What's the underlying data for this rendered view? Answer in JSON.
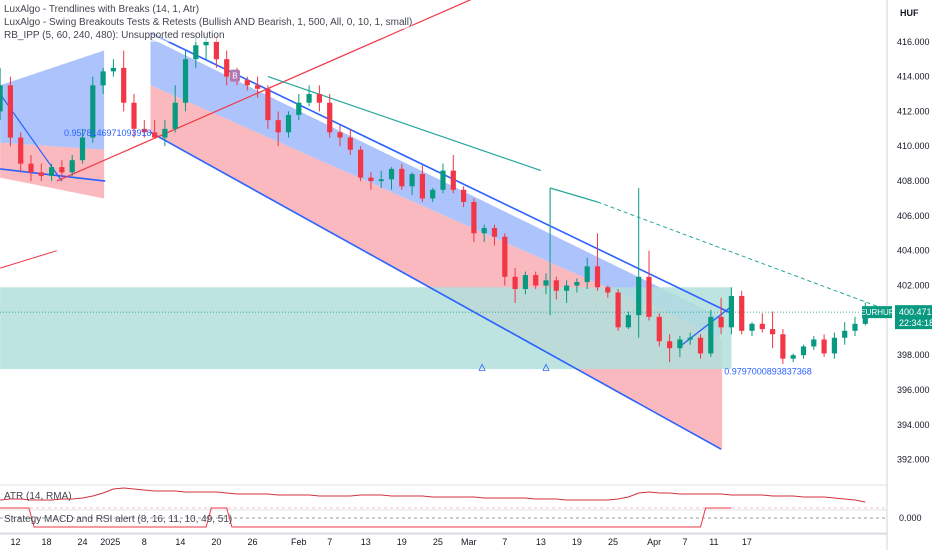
{
  "indicators": [
    "LuxAlgo - Trendlines with Breaks (14, 1, Atr)",
    "LuxAlgo - Swing Breakouts Tests & Retests (Bullish AND Bearish, 1, 500, All, 0, 10, 1, small)",
    "RB_IPP (5, 60, 240, 480): Unsupported resolution",
    "ATR (14, RMA)",
    "Strategy MACD and RSI alert (8, 16, 11, 10, 49, 51)"
  ],
  "currency": "HUF",
  "symbol": "EURHUF",
  "last_price": "400.471",
  "countdown": "22:34:18",
  "osc_value": "0.000",
  "marker_b": "B",
  "level_labels": [
    {
      "text": "0.9578146971093918",
      "t": 5.2,
      "y": 410.6
    },
    {
      "text": "0.9797000893837368",
      "t": 69.3,
      "y": 396.9
    }
  ],
  "chart_data": {
    "type": "candlestick",
    "y_axis_ticks": [
      "416.000",
      "414.000",
      "412.000",
      "410.000",
      "408.000",
      "406.000",
      "404.000",
      "402.000",
      "400.000",
      "398.000",
      "396.000",
      "394.000",
      "392.000"
    ],
    "ylim": [
      390.6,
      418.4
    ],
    "x_axis_ticks": [
      {
        "label": "12",
        "t": 0.5
      },
      {
        "label": "18",
        "t": 3.5
      },
      {
        "label": "24",
        "t": 7.0
      },
      {
        "label": "2025",
        "t": 9.7
      },
      {
        "label": "8",
        "t": 13.0
      },
      {
        "label": "14",
        "t": 16.5
      },
      {
        "label": "20",
        "t": 20.0
      },
      {
        "label": "26",
        "t": 23.5
      },
      {
        "label": "Feb",
        "t": 28.0
      },
      {
        "label": "7",
        "t": 31.0
      },
      {
        "label": "13",
        "t": 34.5
      },
      {
        "label": "19",
        "t": 38.0
      },
      {
        "label": "25",
        "t": 41.5
      },
      {
        "label": "Mar",
        "t": 44.5
      },
      {
        "label": "7",
        "t": 48.0
      },
      {
        "label": "13",
        "t": 51.5
      },
      {
        "label": "19",
        "t": 55.0
      },
      {
        "label": "25",
        "t": 58.5
      },
      {
        "label": "Apr",
        "t": 62.5
      },
      {
        "label": "7",
        "t": 65.5
      },
      {
        "label": "11",
        "t": 68.3
      },
      {
        "label": "17",
        "t": 71.5
      }
    ],
    "candles": [
      {
        "o": 412.0,
        "h": 414.5,
        "l": 411.5,
        "c": 413.5
      },
      {
        "o": 413.5,
        "h": 414.0,
        "l": 410.0,
        "c": 410.5
      },
      {
        "o": 410.5,
        "h": 410.8,
        "l": 408.5,
        "c": 409.0
      },
      {
        "o": 409.0,
        "h": 409.5,
        "l": 408.0,
        "c": 408.5
      },
      {
        "o": 408.5,
        "h": 409.0,
        "l": 408.0,
        "c": 408.3
      },
      {
        "o": 408.3,
        "h": 409.0,
        "l": 408.0,
        "c": 408.8
      },
      {
        "o": 408.8,
        "h": 409.2,
        "l": 408.2,
        "c": 408.5
      },
      {
        "o": 408.5,
        "h": 409.5,
        "l": 408.3,
        "c": 409.2
      },
      {
        "o": 409.2,
        "h": 411.0,
        "l": 409.0,
        "c": 410.5
      },
      {
        "o": 410.5,
        "h": 414.0,
        "l": 410.2,
        "c": 413.5
      },
      {
        "o": 413.5,
        "h": 414.5,
        "l": 413.0,
        "c": 414.3
      },
      {
        "o": 414.3,
        "h": 415.0,
        "l": 414.0,
        "c": 414.5
      },
      {
        "o": 414.5,
        "h": 415.5,
        "l": 412.0,
        "c": 412.5
      },
      {
        "o": 412.5,
        "h": 413.0,
        "l": 410.5,
        "c": 411.0
      },
      {
        "o": 411.0,
        "h": 411.5,
        "l": 410.5,
        "c": 410.8
      },
      {
        "o": 410.8,
        "h": 411.5,
        "l": 410.5,
        "c": 410.5
      },
      {
        "o": 410.5,
        "h": 411.5,
        "l": 410.0,
        "c": 411.0
      },
      {
        "o": 411.0,
        "h": 413.5,
        "l": 410.8,
        "c": 412.5
      },
      {
        "o": 412.5,
        "h": 415.5,
        "l": 412.0,
        "c": 415.0
      },
      {
        "o": 415.0,
        "h": 416.5,
        "l": 414.5,
        "c": 415.8
      },
      {
        "o": 415.8,
        "h": 416.2,
        "l": 415.0,
        "c": 416.0
      },
      {
        "o": 416.0,
        "h": 416.3,
        "l": 414.5,
        "c": 415.0
      },
      {
        "o": 415.0,
        "h": 415.5,
        "l": 413.5,
        "c": 414.0
      },
      {
        "o": 414.0,
        "h": 414.5,
        "l": 413.5,
        "c": 413.8
      },
      {
        "o": 413.8,
        "h": 414.0,
        "l": 413.2,
        "c": 413.5
      },
      {
        "o": 413.5,
        "h": 414.0,
        "l": 412.8,
        "c": 413.3
      },
      {
        "o": 413.3,
        "h": 413.5,
        "l": 411.0,
        "c": 411.5
      },
      {
        "o": 411.5,
        "h": 412.0,
        "l": 410.0,
        "c": 410.8
      },
      {
        "o": 410.8,
        "h": 412.0,
        "l": 410.5,
        "c": 411.8
      },
      {
        "o": 411.8,
        "h": 413.0,
        "l": 411.5,
        "c": 412.5
      },
      {
        "o": 412.5,
        "h": 413.5,
        "l": 412.3,
        "c": 413.0
      },
      {
        "o": 413.0,
        "h": 413.5,
        "l": 412.0,
        "c": 412.5
      },
      {
        "o": 412.5,
        "h": 413.0,
        "l": 410.5,
        "c": 410.8
      },
      {
        "o": 410.8,
        "h": 411.2,
        "l": 410.0,
        "c": 410.5
      },
      {
        "o": 410.5,
        "h": 411.0,
        "l": 409.5,
        "c": 409.8
      },
      {
        "o": 409.8,
        "h": 410.0,
        "l": 408.0,
        "c": 408.2
      },
      {
        "o": 408.2,
        "h": 408.5,
        "l": 407.5,
        "c": 408.0
      },
      {
        "o": 408.0,
        "h": 408.6,
        "l": 407.6,
        "c": 408.1
      },
      {
        "o": 408.1,
        "h": 408.8,
        "l": 407.5,
        "c": 408.7
      },
      {
        "o": 408.7,
        "h": 409.0,
        "l": 407.5,
        "c": 407.7
      },
      {
        "o": 407.7,
        "h": 408.5,
        "l": 407.2,
        "c": 408.4
      },
      {
        "o": 408.4,
        "h": 408.9,
        "l": 406.8,
        "c": 407.0
      },
      {
        "o": 407.0,
        "h": 407.6,
        "l": 406.8,
        "c": 407.5
      },
      {
        "o": 407.5,
        "h": 409.0,
        "l": 407.3,
        "c": 408.6
      },
      {
        "o": 408.6,
        "h": 409.5,
        "l": 407.3,
        "c": 407.5
      },
      {
        "o": 407.5,
        "h": 407.7,
        "l": 406.5,
        "c": 406.8
      },
      {
        "o": 406.8,
        "h": 407.0,
        "l": 404.5,
        "c": 405.0
      },
      {
        "o": 405.0,
        "h": 405.5,
        "l": 404.5,
        "c": 405.3
      },
      {
        "o": 405.3,
        "h": 405.5,
        "l": 404.3,
        "c": 404.8
      },
      {
        "o": 404.8,
        "h": 405.0,
        "l": 402.0,
        "c": 402.5
      },
      {
        "o": 402.5,
        "h": 403.0,
        "l": 401.0,
        "c": 401.8
      },
      {
        "o": 401.8,
        "h": 402.8,
        "l": 401.5,
        "c": 402.6
      },
      {
        "o": 402.6,
        "h": 402.8,
        "l": 401.8,
        "c": 402.0
      },
      {
        "o": 402.0,
        "h": 402.7,
        "l": 401.5,
        "c": 402.3
      },
      {
        "o": 402.3,
        "h": 402.5,
        "l": 401.2,
        "c": 401.7
      },
      {
        "o": 401.7,
        "h": 402.3,
        "l": 401.0,
        "c": 402.0
      },
      {
        "o": 402.0,
        "h": 402.4,
        "l": 401.6,
        "c": 402.2
      },
      {
        "o": 402.2,
        "h": 403.6,
        "l": 401.8,
        "c": 403.1
      },
      {
        "o": 403.1,
        "h": 405.0,
        "l": 401.7,
        "c": 401.9
      },
      {
        "o": 401.9,
        "h": 402.0,
        "l": 401.3,
        "c": 401.6
      },
      {
        "o": 401.6,
        "h": 401.8,
        "l": 399.4,
        "c": 399.6
      },
      {
        "o": 399.6,
        "h": 400.5,
        "l": 399.5,
        "c": 400.3
      },
      {
        "o": 400.3,
        "h": 407.6,
        "l": 399.0,
        "c": 402.5
      },
      {
        "o": 402.5,
        "h": 404.0,
        "l": 400.0,
        "c": 400.2
      },
      {
        "o": 400.2,
        "h": 400.4,
        "l": 398.5,
        "c": 398.8
      },
      {
        "o": 398.8,
        "h": 399.2,
        "l": 397.6,
        "c": 398.4
      },
      {
        "o": 398.4,
        "h": 399.1,
        "l": 397.9,
        "c": 398.9
      },
      {
        "o": 398.9,
        "h": 399.3,
        "l": 398.6,
        "c": 399.0
      },
      {
        "o": 399.0,
        "h": 399.2,
        "l": 397.8,
        "c": 398.1
      },
      {
        "o": 398.1,
        "h": 400.6,
        "l": 397.9,
        "c": 400.2
      },
      {
        "o": 400.2,
        "h": 401.3,
        "l": 399.2,
        "c": 399.6
      },
      {
        "o": 399.6,
        "h": 401.9,
        "l": 399.2,
        "c": 401.4
      },
      {
        "o": 401.4,
        "h": 401.7,
        "l": 399.2,
        "c": 399.4
      },
      {
        "o": 399.4,
        "h": 399.9,
        "l": 399.1,
        "c": 399.8
      },
      {
        "o": 399.8,
        "h": 400.4,
        "l": 399.3,
        "c": 399.5
      },
      {
        "o": 399.5,
        "h": 400.5,
        "l": 398.4,
        "c": 399.2
      },
      {
        "o": 399.2,
        "h": 399.5,
        "l": 397.5,
        "c": 397.8
      },
      {
        "o": 397.8,
        "h": 398.1,
        "l": 397.6,
        "c": 398.0
      },
      {
        "o": 398.0,
        "h": 398.6,
        "l": 397.8,
        "c": 398.5
      },
      {
        "o": 398.5,
        "h": 399.1,
        "l": 398.3,
        "c": 398.9
      },
      {
        "o": 398.9,
        "h": 399.2,
        "l": 397.9,
        "c": 398.1
      },
      {
        "o": 398.1,
        "h": 399.3,
        "l": 397.8,
        "c": 399.0
      },
      {
        "o": 399.0,
        "h": 399.9,
        "l": 398.6,
        "c": 399.4
      },
      {
        "o": 399.4,
        "h": 400.2,
        "l": 399.1,
        "c": 399.8
      },
      {
        "o": 399.8,
        "h": 401.0,
        "l": 399.7,
        "c": 400.6
      }
    ],
    "last_price": 400.471
  },
  "colors": {
    "bull": "#089981",
    "bear": "#f23645",
    "channel_line": "#2962ff",
    "upper_fill": "#adc3fc",
    "lower_fill": "#f9b9bf",
    "zone_fill": "#b2dfdb",
    "trend_red": "#f23645",
    "trend_teal": "#26a69a",
    "atr_line": "#d1323e"
  }
}
